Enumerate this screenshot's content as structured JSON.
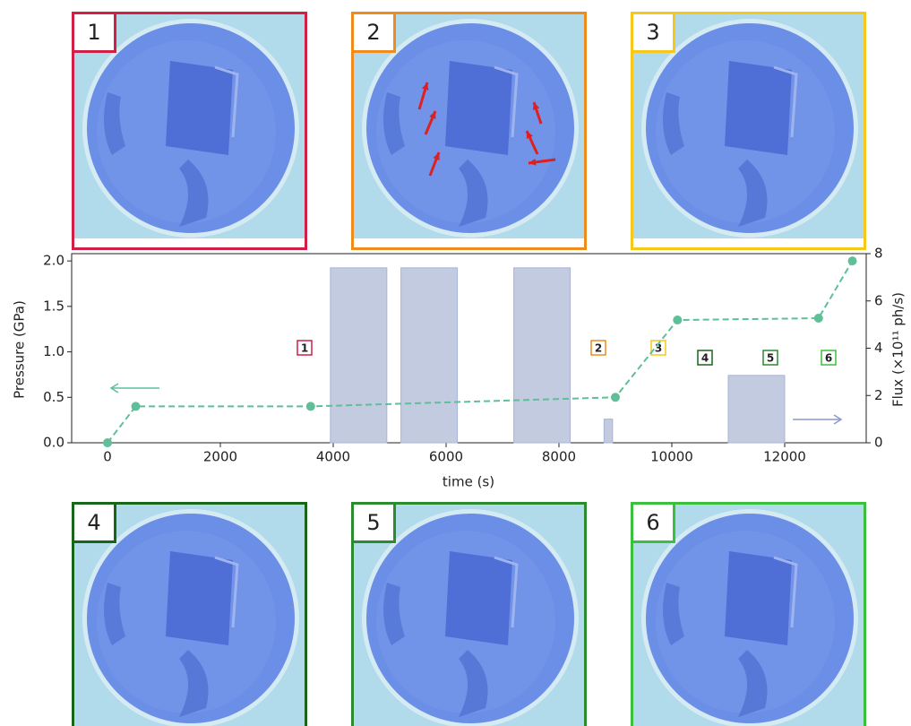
{
  "panels": [
    {
      "label": "1",
      "color": "#d21f46"
    },
    {
      "label": "2",
      "color": "#f08c1e"
    },
    {
      "label": "3",
      "color": "#f5c81a"
    },
    {
      "label": "4",
      "color": "#17661a"
    },
    {
      "label": "5",
      "color": "#2a8c2e"
    },
    {
      "label": "6",
      "color": "#3cbf3c"
    }
  ],
  "chart_data": {
    "type": "line",
    "xlabel": "time (s)",
    "ylabel": "Pressure (GPa)",
    "y2label": "Flux (×10¹¹ ph/s)",
    "xlim": [
      -635,
      13445
    ],
    "xticks": [
      0,
      2000,
      4000,
      6000,
      8000,
      10000,
      12000
    ],
    "ylim": [
      0,
      2.08
    ],
    "yticks": [
      {
        "value": 0,
        "label": "0.0"
      },
      0.5,
      {
        "value": 1,
        "label": "1.0"
      },
      1.5,
      {
        "value": 2,
        "label": "2.0"
      }
    ],
    "y2lim": [
      0,
      8
    ],
    "y2ticks": [
      0,
      2,
      4,
      6,
      8
    ],
    "series": [
      {
        "color": "#5fbf98",
        "x": [
          0,
          500,
          3600,
          9000,
          10100,
          12600,
          13200
        ],
        "values": [
          0,
          0.4,
          0.4,
          0.5,
          1.35,
          1.37,
          2.0
        ]
      }
    ],
    "flux_bars": {
      "axis": "y2",
      "color": "#c3cbe0",
      "x_start": [
        3950,
        5200,
        7200,
        8800,
        11000
      ],
      "x_end": [
        4950,
        6200,
        8200,
        8950,
        12000
      ],
      "values": [
        7.4,
        7.4,
        7.4,
        1.0,
        2.85
      ]
    },
    "annotations": [
      "1",
      "2",
      "3",
      "4",
      "5",
      "6"
    ]
  }
}
